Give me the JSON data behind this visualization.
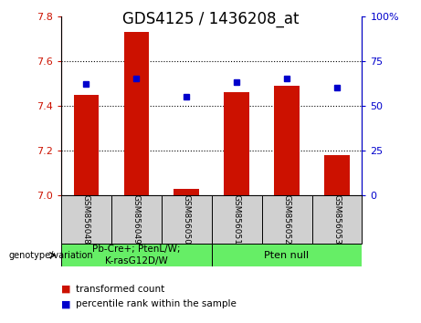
{
  "title": "GDS4125 / 1436208_at",
  "samples": [
    "GSM856048",
    "GSM856049",
    "GSM856050",
    "GSM856051",
    "GSM856052",
    "GSM856053"
  ],
  "bar_values": [
    7.45,
    7.73,
    7.03,
    7.46,
    7.49,
    7.18
  ],
  "percentile_values": [
    62,
    65,
    55,
    63,
    65,
    60
  ],
  "ylim_left": [
    7.0,
    7.8
  ],
  "ylim_right": [
    0,
    100
  ],
  "yticks_left": [
    7.0,
    7.2,
    7.4,
    7.6,
    7.8
  ],
  "yticks_right": [
    0,
    25,
    50,
    75,
    100
  ],
  "bar_color": "#cc1100",
  "dot_color": "#0000cc",
  "bar_bottom": 7.0,
  "group1_label": "Pb-Cre+; PtenL/W;\nK-rasG12D/W",
  "group2_label": "Pten null",
  "group1_samples": [
    0,
    1,
    2
  ],
  "group2_samples": [
    3,
    4,
    5
  ],
  "group1_bg": "#66ee66",
  "group2_bg": "#66ee66",
  "sample_bg": "#d0d0d0",
  "genotype_label": "genotype/variation",
  "legend_bar_label": "transformed count",
  "legend_dot_label": "percentile rank within the sample",
  "title_fontsize": 12,
  "tick_fontsize": 8,
  "label_fontsize": 6.5,
  "geno_fontsize": 7.5,
  "legend_fontsize": 7.5
}
